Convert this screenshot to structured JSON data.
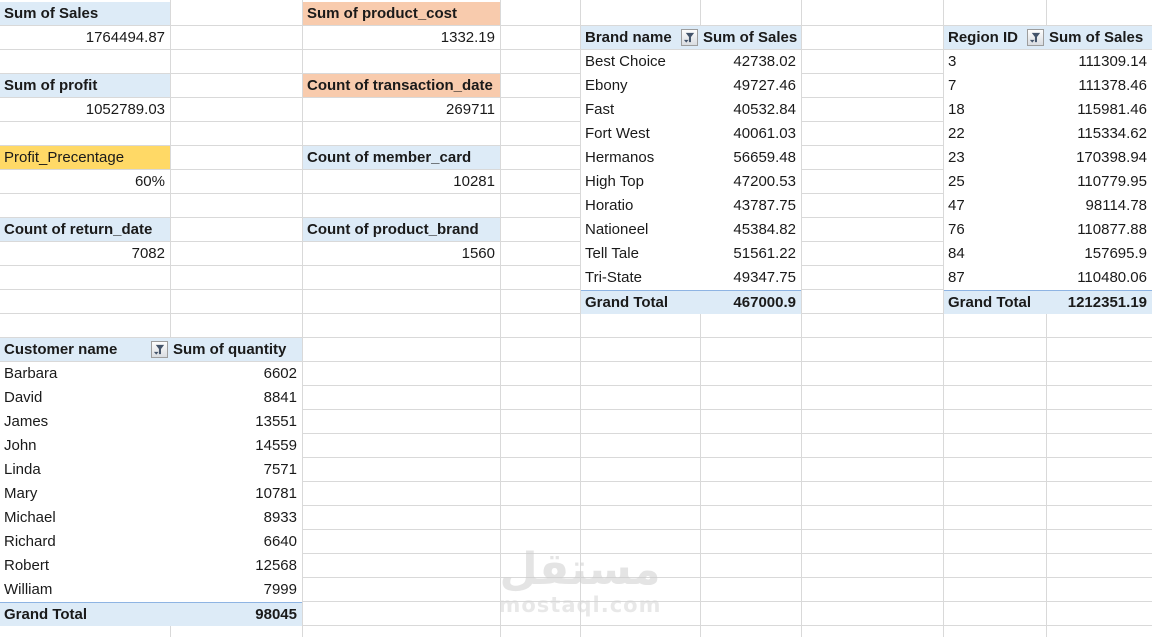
{
  "kpis": [
    {
      "id": "sum-of-sales",
      "label": "Sum of Sales",
      "value": "1764494.87"
    },
    {
      "id": "sum-of-product-cost",
      "label": "Sum of product_cost",
      "value": "1332.19"
    },
    {
      "id": "sum-of-profit",
      "label": "Sum of profit",
      "value": "1052789.03"
    },
    {
      "id": "count-of-transaction-date",
      "label": "Count of transaction_date",
      "value": "269711"
    },
    {
      "id": "profit-precentage",
      "label": "Profit_Precentage",
      "value": "60%"
    },
    {
      "id": "count-of-member-card",
      "label": "Count of member_card",
      "value": "10281"
    },
    {
      "id": "count-of-return-date",
      "label": "Count of return_date",
      "value": "7082"
    },
    {
      "id": "count-of-product-brand",
      "label": "Count of product_brand",
      "value": "1560"
    }
  ],
  "customer_table": {
    "header": {
      "col1": "Customer name",
      "col2": "Sum of quantity"
    },
    "rows": [
      [
        "Barbara",
        "6602"
      ],
      [
        "David",
        "8841"
      ],
      [
        "James",
        "13551"
      ],
      [
        "John",
        "14559"
      ],
      [
        "Linda",
        "7571"
      ],
      [
        "Mary",
        "10781"
      ],
      [
        "Michael",
        "8933"
      ],
      [
        "Richard",
        "6640"
      ],
      [
        "Robert",
        "12568"
      ],
      [
        "William",
        "7999"
      ]
    ],
    "total": {
      "label": "Grand Total",
      "value": "98045"
    }
  },
  "brand_table": {
    "header": {
      "col1": "Brand name",
      "col2": "Sum of Sales"
    },
    "rows": [
      [
        "Best Choice",
        "42738.02"
      ],
      [
        "Ebony",
        "49727.46"
      ],
      [
        "Fast",
        "40532.84"
      ],
      [
        "Fort West",
        "40061.03"
      ],
      [
        "Hermanos",
        "56659.48"
      ],
      [
        "High Top",
        "47200.53"
      ],
      [
        "Horatio",
        "43787.75"
      ],
      [
        "Nationeel",
        "45384.82"
      ],
      [
        "Tell Tale",
        "51561.22"
      ],
      [
        "Tri-State",
        "49347.75"
      ]
    ],
    "total": {
      "label": "Grand Total",
      "value": "467000.9"
    }
  },
  "region_table": {
    "header": {
      "col1": "Region ID",
      "col2": "Sum of Sales"
    },
    "rows": [
      [
        "3",
        "111309.14"
      ],
      [
        "7",
        "111378.46"
      ],
      [
        "18",
        "115981.46"
      ],
      [
        "22",
        "115334.62"
      ],
      [
        "23",
        "170398.94"
      ],
      [
        "25",
        "110779.95"
      ],
      [
        "47",
        "98114.78"
      ],
      [
        "76",
        "110877.88"
      ],
      [
        "84",
        "157695.9"
      ],
      [
        "87",
        "110480.06"
      ]
    ],
    "total": {
      "label": "Grand Total",
      "value": "1212351.19"
    }
  },
  "watermark": {
    "logo": "مستقل",
    "site": "mostaql.com"
  },
  "colors": {
    "header_blue": "#DDEBF7",
    "orange": "#F8CBAD",
    "yellow": "#FFD966",
    "gridline": "#D9D9D9",
    "total_border_blue": "#8EB4E3"
  }
}
